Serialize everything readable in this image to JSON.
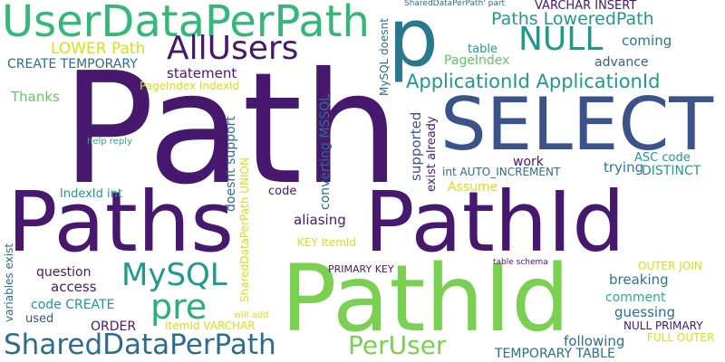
{
  "words": [
    {
      "id": "path",
      "text": "Path",
      "color": "#46186e"
    },
    {
      "id": "paths",
      "text": "Paths",
      "color": "#46186e"
    },
    {
      "id": "pathid-a",
      "text": "PathId",
      "color": "#46186e"
    },
    {
      "id": "pathid-b",
      "text": "PathId",
      "color": "#7ad151"
    },
    {
      "id": "select",
      "text": "SELECT",
      "color": "#3b528b"
    },
    {
      "id": "p",
      "text": "p",
      "color": "#2a788e"
    },
    {
      "id": "userdataperpath",
      "text": "UserDataPerPath",
      "color": "#35b779"
    },
    {
      "id": "allusers",
      "text": "AllUsers",
      "color": "#46186e"
    },
    {
      "id": "null",
      "text": "NULL",
      "color": "#1f9a8a"
    },
    {
      "id": "shareddataperpath",
      "text": "SharedDataPerPath",
      "color": "#2c6d8e"
    },
    {
      "id": "mysql",
      "text": "MySQL",
      "color": "#1f9a8a"
    },
    {
      "id": "pre",
      "text": "pre",
      "color": "#29af7f"
    },
    {
      "id": "peruser",
      "text": "PerUser",
      "color": "#7ad151"
    },
    {
      "id": "applicationid-applicationid",
      "text": "ApplicationId ApplicationId",
      "color": "#1f9a8a"
    },
    {
      "id": "paths-loweredpath",
      "text": "Paths LoweredPath",
      "color": "#1f9a8a"
    },
    {
      "id": "lower-path",
      "text": "LOWER Path",
      "color": "#d2e21b"
    },
    {
      "id": "create-temporary",
      "text": "CREATE TEMPORARY",
      "color": "#2c6d8e"
    },
    {
      "id": "statement",
      "text": "statement",
      "color": "#46186e"
    },
    {
      "id": "thanks",
      "text": "Thanks",
      "color": "#5ec962"
    },
    {
      "id": "pageindex-indexid",
      "text": "PageIndex IndexId",
      "color": "#d2e21b"
    },
    {
      "id": "pageindex",
      "text": "PageIndex",
      "color": "#5ec962"
    },
    {
      "id": "table",
      "text": "table",
      "color": "#1f9a8a"
    },
    {
      "id": "coming",
      "text": "coming",
      "color": "#2a788e"
    },
    {
      "id": "advance",
      "text": "advance",
      "color": "#35608d"
    },
    {
      "id": "varchar-insert",
      "text": "VARCHAR INSERT",
      "color": "#46186e"
    },
    {
      "id": "shareddataperpath-part",
      "text": "SharedDataPerPath' part",
      "color": "#2c6d8e"
    },
    {
      "id": "mysql-doesnt",
      "text": "MySQL doesnt",
      "color": "#2c6d8e"
    },
    {
      "id": "converting-mssql",
      "text": "converting MSSQL",
      "color": "#2c6d8e"
    },
    {
      "id": "supported",
      "text": "supported",
      "color": "#3b528b"
    },
    {
      "id": "exist-already",
      "text": "exist already",
      "color": "#46186e"
    },
    {
      "id": "doesnt-support",
      "text": "doesnt support",
      "color": "#2c6d8e"
    },
    {
      "id": "shareddataperpath-union",
      "text": "SharedDataPerPath UNION",
      "color": "#d2e21b"
    },
    {
      "id": "help-reply",
      "text": "help reply",
      "color": "#29af7f"
    },
    {
      "id": "work",
      "text": "work",
      "color": "#46186e"
    },
    {
      "id": "int-auto-increment",
      "text": "int AUTO_INCREMENT",
      "color": "#2c6d8e"
    },
    {
      "id": "trying",
      "text": "trying",
      "color": "#2a788e"
    },
    {
      "id": "asc-code",
      "text": "ASC code",
      "color": "#1f9a8a"
    },
    {
      "id": "distinct",
      "text": "DISTINCT",
      "color": "#1f9a8a"
    },
    {
      "id": "assume",
      "text": "Assume",
      "color": "#d2e21b"
    },
    {
      "id": "indexid-int",
      "text": "IndexId int",
      "color": "#1f9a8a"
    },
    {
      "id": "code",
      "text": "code",
      "color": "#46186e"
    },
    {
      "id": "aliasing",
      "text": "aliasing",
      "color": "#46186e"
    },
    {
      "id": "key-itemid",
      "text": "KEY ItemId",
      "color": "#d2e21b"
    },
    {
      "id": "variables-exist",
      "text": "variables exist",
      "color": "#2c6d8e"
    },
    {
      "id": "table-schema",
      "text": "table schema",
      "color": "#46186e"
    },
    {
      "id": "primary-key",
      "text": "PRIMARY KEY",
      "color": "#46186e"
    },
    {
      "id": "question",
      "text": "question",
      "color": "#46186e"
    },
    {
      "id": "access",
      "text": "access",
      "color": "#46186e"
    },
    {
      "id": "code-create",
      "text": "code CREATE",
      "color": "#1f9a8a"
    },
    {
      "id": "used",
      "text": "used",
      "color": "#3b528b"
    },
    {
      "id": "order",
      "text": "ORDER",
      "color": "#46186e"
    },
    {
      "id": "itemid-varchar",
      "text": "ItemId VARCHAR",
      "color": "#d2e21b"
    },
    {
      "id": "will-add",
      "text": "will add",
      "color": "#d2e21b"
    },
    {
      "id": "outer-join",
      "text": "OUTER JOIN",
      "color": "#d2e21b"
    },
    {
      "id": "breaking",
      "text": "breaking",
      "color": "#2a788e"
    },
    {
      "id": "comment",
      "text": "comment",
      "color": "#29af7f"
    },
    {
      "id": "guessing",
      "text": "guessing",
      "color": "#2c6d8e"
    },
    {
      "id": "null-primary",
      "text": "NULL PRIMARY",
      "color": "#46186e"
    },
    {
      "id": "full-outer",
      "text": "FULL OUTER",
      "color": "#d2e21b"
    },
    {
      "id": "following",
      "text": "following",
      "color": "#2c6d8e"
    },
    {
      "id": "temporary-table",
      "text": "TEMPORARY TABLE",
      "color": "#2c6d8e"
    }
  ]
}
